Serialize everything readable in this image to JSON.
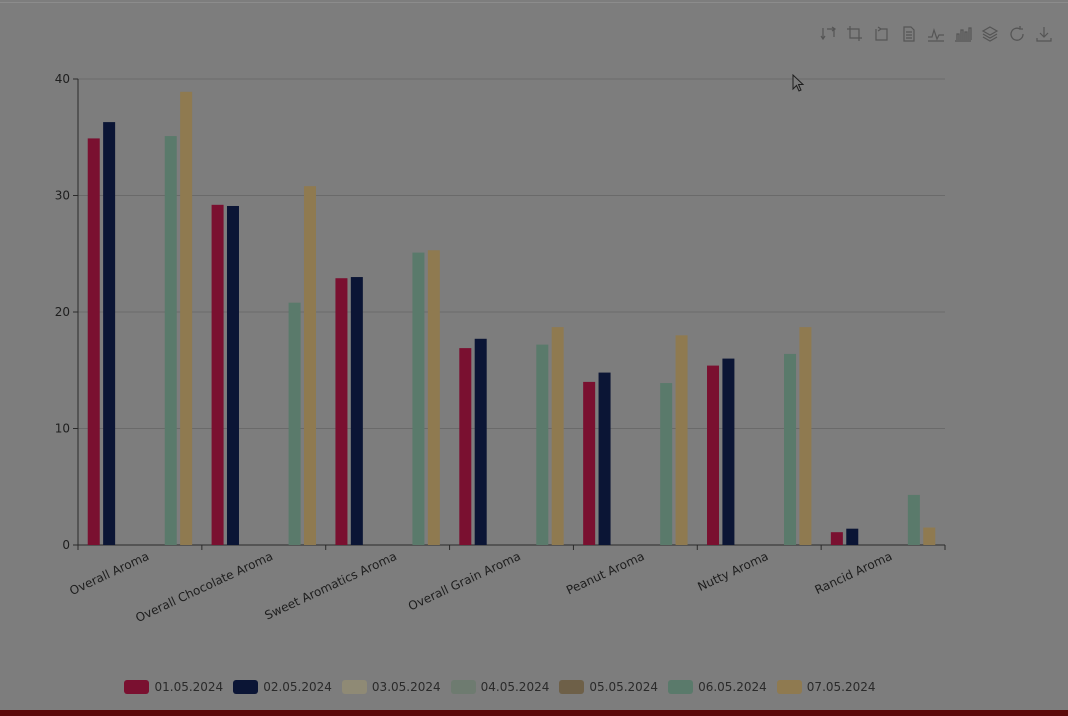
{
  "toolbox": {
    "icons": [
      "transform-icon",
      "crop-icon",
      "crop-reset-icon",
      "data-view-icon",
      "line-chart-icon",
      "bar-chart-icon",
      "stack-icon",
      "restore-icon",
      "download-icon"
    ]
  },
  "colors": {
    "background": "#7d7d7d",
    "axis": "#2a2a2a",
    "grid": "#6a6a6a",
    "text": "#1e1e1e"
  },
  "chart_data": {
    "type": "bar",
    "title": "",
    "xlabel": "",
    "ylabel": "",
    "ylim": [
      0,
      40
    ],
    "yticks": [
      0,
      10,
      20,
      30,
      40
    ],
    "grid": true,
    "legend_position": "bottom",
    "categories": [
      "Overall Aroma",
      "Overall Chocolate Aroma",
      "Sweet Aromatics Aroma",
      "Overall Grain Aroma",
      "Peanut Aroma",
      "Nutty Aroma",
      "Rancid Aroma"
    ],
    "series": [
      {
        "name": "01.05.2024",
        "color": "#7a1030",
        "values": [
          34.9,
          29.2,
          22.9,
          16.9,
          14.0,
          15.4,
          1.1
        ]
      },
      {
        "name": "02.05.2024",
        "color": "#0b1535",
        "values": [
          36.3,
          29.1,
          23.0,
          17.7,
          14.8,
          16.0,
          1.4
        ]
      },
      {
        "name": "03.05.2024",
        "color": "#8f8a75",
        "values": [
          null,
          null,
          null,
          null,
          null,
          null,
          null
        ]
      },
      {
        "name": "04.05.2024",
        "color": "#6e7b70",
        "values": [
          null,
          null,
          null,
          null,
          null,
          null,
          null
        ]
      },
      {
        "name": "05.05.2024",
        "color": "#6e6048",
        "values": [
          null,
          null,
          null,
          null,
          null,
          null,
          null
        ]
      },
      {
        "name": "06.05.2024",
        "color": "#5a7a6b",
        "values": [
          35.1,
          20.8,
          25.1,
          17.2,
          13.9,
          16.4,
          4.3
        ]
      },
      {
        "name": "07.05.2024",
        "color": "#8f7a50",
        "values": [
          38.9,
          30.8,
          25.3,
          18.7,
          18.0,
          18.7,
          1.5
        ]
      }
    ]
  }
}
